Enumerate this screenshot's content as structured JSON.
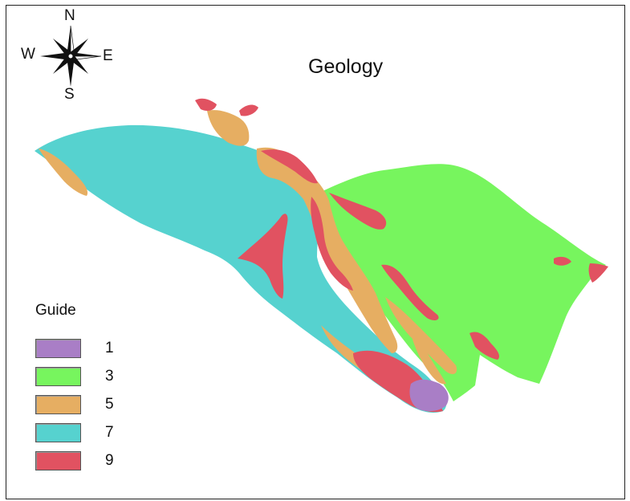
{
  "map": {
    "title": "Geology",
    "compass": {
      "n": "N",
      "s": "S",
      "e": "E",
      "w": "W"
    },
    "colors": {
      "unit_1": "#A97EC6",
      "unit_3": "#77F55E",
      "unit_5": "#E6AE62",
      "unit_7": "#56D2CF",
      "unit_9": "#E15261"
    }
  },
  "legend": {
    "title": "Guide",
    "items": [
      {
        "label": "1",
        "color": "#A97EC6"
      },
      {
        "label": "3",
        "color": "#77F55E"
      },
      {
        "label": "5",
        "color": "#E6AE62"
      },
      {
        "label": "7",
        "color": "#56D2CF"
      },
      {
        "label": "9",
        "color": "#E15261"
      }
    ]
  }
}
